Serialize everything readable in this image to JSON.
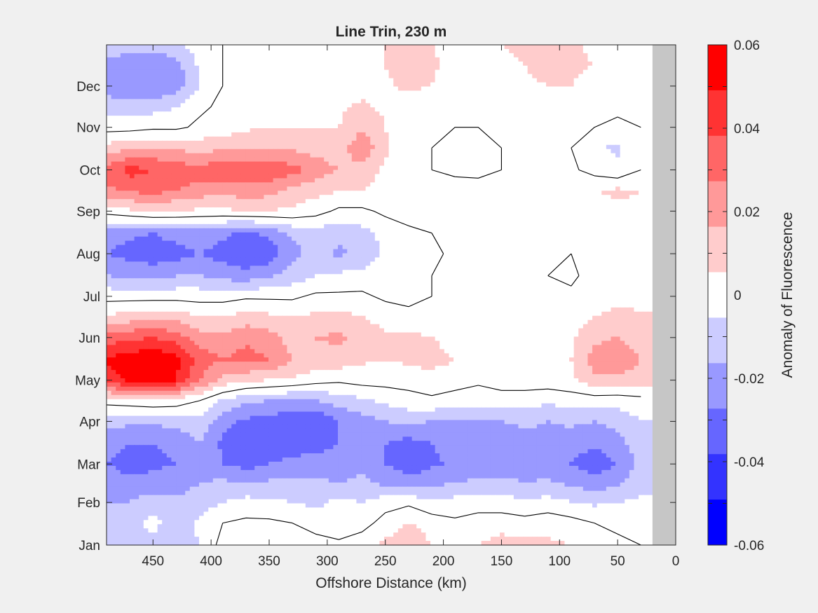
{
  "chart_data": {
    "type": "heatmap",
    "title": "Line Trin, 230 m",
    "xlabel": "Offshore Distance (km)",
    "ylabel": "",
    "colorbar_label": "Anomaly of Fluorescence",
    "xlim": [
      490,
      0
    ],
    "x_ticks": [
      450,
      400,
      350,
      300,
      250,
      200,
      150,
      100,
      50,
      0
    ],
    "y_ticks": [
      "Jan",
      "Feb",
      "Mar",
      "Apr",
      "May",
      "Jun",
      "Jul",
      "Aug",
      "Sep",
      "Oct",
      "Nov",
      "Dec"
    ],
    "y_tick_days": [
      1,
      32,
      60,
      91,
      121,
      152,
      182,
      213,
      244,
      274,
      305,
      335
    ],
    "ylim_days": [
      1,
      365
    ],
    "clim": [
      -0.06,
      0.06
    ],
    "colorbar_ticks": [
      "0.06",
      "0.04",
      "0.02",
      "0",
      "-0.02",
      "-0.04",
      "-0.06"
    ],
    "colorbar_tick_values": [
      0.06,
      0.04,
      0.02,
      0,
      -0.02,
      -0.04,
      -0.06
    ],
    "contour_levels": [
      -0.06,
      -0.05,
      -0.04,
      -0.03,
      -0.02,
      -0.01,
      0.01,
      0.02,
      0.03,
      0.04,
      0.05,
      0.06
    ],
    "level_colors": [
      "#0000ff",
      "#3333ff",
      "#6666ff",
      "#9999ff",
      "#ccccff",
      "#ffffff",
      "#ffcccc",
      "#ff9999",
      "#ff6666",
      "#ff3333",
      "#ff0000"
    ],
    "masked_region_color": "#c6c6c6",
    "masked_region_x": [
      20,
      0
    ],
    "zero_contour_color": "#000000",
    "grid": false,
    "legend": "colorbar-right",
    "x": [
      490,
      470,
      450,
      430,
      410,
      390,
      370,
      350,
      330,
      310,
      290,
      270,
      250,
      230,
      210,
      190,
      170,
      150,
      130,
      110,
      90,
      70,
      50,
      30
    ],
    "y_days": [
      1,
      17,
      32,
      46,
      60,
      75,
      91,
      106,
      121,
      136,
      152,
      167,
      182,
      197,
      213,
      228,
      244,
      259,
      274,
      290,
      305,
      320,
      335,
      350,
      365
    ],
    "z": [
      [
        -0.012,
        -0.014,
        -0.012,
        -0.016,
        -0.01,
        0.004,
        0.006,
        0.008,
        0.006,
        0.004,
        0.002,
        0.006,
        0.012,
        0.018,
        0.01,
        0.004,
        0.01,
        0.014,
        0.014,
        0.012,
        0.01,
        0.006,
        0.002,
        0.0
      ],
      [
        -0.012,
        -0.012,
        -0.008,
        -0.014,
        -0.008,
        0.0,
        0.002,
        0.002,
        0.0,
        -0.004,
        -0.006,
        -0.004,
        0.004,
        0.01,
        0.006,
        0.002,
        0.004,
        0.006,
        0.004,
        0.006,
        0.004,
        0.0,
        -0.002,
        -0.002
      ],
      [
        -0.02,
        -0.02,
        -0.014,
        -0.018,
        -0.016,
        -0.01,
        -0.006,
        -0.008,
        -0.01,
        -0.012,
        -0.008,
        -0.01,
        -0.004,
        -0.002,
        -0.008,
        -0.006,
        -0.004,
        -0.006,
        -0.008,
        -0.006,
        -0.01,
        -0.012,
        -0.01,
        -0.008
      ],
      [
        -0.024,
        -0.028,
        -0.026,
        -0.024,
        -0.02,
        -0.018,
        -0.02,
        -0.018,
        -0.016,
        -0.018,
        -0.02,
        -0.018,
        -0.022,
        -0.026,
        -0.022,
        -0.02,
        -0.018,
        -0.016,
        -0.02,
        -0.018,
        -0.022,
        -0.026,
        -0.022,
        -0.014
      ],
      [
        -0.03,
        -0.034,
        -0.032,
        -0.03,
        -0.022,
        -0.03,
        -0.034,
        -0.03,
        -0.028,
        -0.026,
        -0.024,
        -0.022,
        -0.03,
        -0.036,
        -0.032,
        -0.028,
        -0.026,
        -0.03,
        -0.028,
        -0.026,
        -0.03,
        -0.036,
        -0.03,
        -0.016
      ],
      [
        -0.026,
        -0.03,
        -0.03,
        -0.028,
        -0.02,
        -0.032,
        -0.04,
        -0.036,
        -0.034,
        -0.034,
        -0.03,
        -0.028,
        -0.03,
        -0.034,
        -0.03,
        -0.026,
        -0.026,
        -0.026,
        -0.024,
        -0.024,
        -0.026,
        -0.028,
        -0.024,
        -0.014
      ],
      [
        -0.016,
        -0.018,
        -0.018,
        -0.016,
        -0.012,
        -0.026,
        -0.032,
        -0.034,
        -0.038,
        -0.04,
        -0.03,
        -0.024,
        -0.02,
        -0.018,
        -0.02,
        -0.022,
        -0.02,
        -0.02,
        -0.018,
        -0.02,
        -0.018,
        -0.02,
        -0.016,
        -0.01
      ],
      [
        0.004,
        0.006,
        0.008,
        0.006,
        0.0,
        -0.012,
        -0.018,
        -0.02,
        -0.022,
        -0.02,
        -0.016,
        -0.012,
        -0.008,
        -0.004,
        -0.002,
        -0.004,
        -0.006,
        -0.004,
        -0.006,
        -0.008,
        -0.006,
        -0.006,
        -0.006,
        -0.004
      ],
      [
        0.044,
        0.052,
        0.056,
        0.05,
        0.03,
        0.018,
        0.012,
        0.01,
        0.008,
        0.004,
        0.002,
        0.004,
        0.004,
        0.004,
        0.006,
        0.004,
        0.002,
        0.004,
        0.006,
        0.006,
        0.008,
        0.018,
        0.016,
        0.016
      ],
      [
        0.052,
        0.056,
        0.058,
        0.054,
        0.036,
        0.03,
        0.034,
        0.03,
        0.02,
        0.018,
        0.016,
        0.012,
        0.01,
        0.012,
        0.014,
        0.01,
        0.006,
        0.006,
        0.008,
        0.006,
        0.01,
        0.024,
        0.028,
        0.02
      ],
      [
        0.034,
        0.038,
        0.04,
        0.036,
        0.024,
        0.022,
        0.028,
        0.024,
        0.016,
        0.02,
        0.022,
        0.016,
        0.012,
        0.012,
        0.01,
        0.006,
        0.004,
        0.004,
        0.006,
        0.004,
        0.008,
        0.018,
        0.02,
        0.016
      ],
      [
        0.012,
        0.014,
        0.016,
        0.016,
        0.01,
        0.01,
        0.014,
        0.012,
        0.01,
        0.012,
        0.014,
        0.01,
        0.006,
        0.004,
        0.004,
        0.002,
        0.002,
        0.002,
        0.002,
        0.002,
        0.004,
        0.01,
        0.012,
        0.012
      ],
      [
        -0.004,
        -0.004,
        -0.004,
        -0.004,
        -0.004,
        -0.004,
        -0.002,
        -0.002,
        -0.002,
        0.002,
        0.002,
        0.002,
        -0.002,
        -0.004,
        0.0,
        0.0,
        0.002,
        0.002,
        0.002,
        0.002,
        0.002,
        0.006,
        0.008,
        0.006
      ],
      [
        -0.02,
        -0.022,
        -0.024,
        -0.02,
        -0.02,
        -0.024,
        -0.026,
        -0.022,
        -0.016,
        -0.01,
        -0.008,
        -0.006,
        -0.004,
        -0.002,
        0.0,
        0.0,
        0.002,
        0.002,
        0.002,
        0.0,
        -0.002,
        0.004,
        0.006,
        0.004
      ],
      [
        -0.03,
        -0.034,
        -0.036,
        -0.034,
        -0.03,
        -0.034,
        -0.04,
        -0.036,
        -0.024,
        -0.016,
        -0.022,
        -0.018,
        -0.008,
        -0.004,
        -0.002,
        0.002,
        0.004,
        0.004,
        0.002,
        0.0,
        0.0,
        0.004,
        0.006,
        0.004
      ],
      [
        -0.024,
        -0.028,
        -0.03,
        -0.026,
        -0.024,
        -0.028,
        -0.032,
        -0.028,
        -0.018,
        -0.014,
        -0.018,
        -0.014,
        -0.006,
        -0.002,
        0.0,
        0.002,
        0.006,
        0.008,
        0.006,
        0.002,
        0.002,
        0.004,
        0.006,
        0.006
      ],
      [
        0.004,
        0.008,
        0.012,
        0.01,
        0.008,
        0.008,
        0.01,
        0.01,
        0.008,
        0.004,
        -0.002,
        -0.002,
        0.002,
        0.004,
        0.004,
        0.002,
        0.006,
        0.008,
        0.006,
        0.004,
        0.004,
        0.006,
        0.008,
        0.008
      ],
      [
        0.028,
        0.032,
        0.034,
        0.03,
        0.026,
        0.024,
        0.026,
        0.024,
        0.016,
        0.014,
        0.01,
        0.01,
        0.006,
        0.004,
        0.002,
        0.004,
        0.006,
        0.006,
        0.004,
        0.004,
        0.006,
        0.01,
        0.012,
        0.01
      ],
      [
        0.034,
        0.044,
        0.04,
        0.036,
        0.034,
        0.038,
        0.036,
        0.038,
        0.034,
        0.026,
        0.02,
        0.016,
        0.008,
        0.004,
        0.0,
        -0.002,
        -0.004,
        0.0,
        0.0,
        0.002,
        0.002,
        -0.004,
        -0.008,
        0.0
      ],
      [
        0.014,
        0.018,
        0.02,
        0.018,
        0.016,
        0.018,
        0.018,
        0.02,
        0.018,
        0.016,
        0.014,
        0.028,
        0.012,
        0.004,
        0.0,
        -0.002,
        -0.004,
        0.0,
        0.0,
        0.002,
        0.0,
        -0.008,
        -0.012,
        -0.004
      ],
      [
        -0.004,
        -0.004,
        -0.002,
        -0.002,
        0.002,
        0.004,
        0.008,
        0.01,
        0.01,
        0.01,
        0.01,
        0.018,
        0.01,
        0.004,
        0.002,
        0.0,
        0.0,
        0.002,
        0.002,
        0.004,
        0.004,
        0.0,
        -0.002,
        0.0
      ],
      [
        -0.014,
        -0.016,
        -0.014,
        -0.01,
        -0.002,
        0.002,
        0.004,
        0.006,
        0.006,
        0.008,
        0.008,
        0.012,
        0.008,
        0.006,
        0.004,
        0.002,
        0.002,
        0.004,
        0.004,
        0.006,
        0.008,
        0.004,
        0.002,
        0.002
      ],
      [
        -0.026,
        -0.03,
        -0.03,
        -0.026,
        -0.01,
        0.0,
        0.002,
        0.004,
        0.004,
        0.006,
        0.006,
        0.006,
        0.008,
        0.012,
        0.01,
        0.004,
        0.004,
        0.006,
        0.008,
        0.01,
        0.01,
        0.006,
        0.006,
        0.004
      ],
      [
        -0.022,
        -0.026,
        -0.028,
        -0.024,
        -0.008,
        0.0,
        0.004,
        0.006,
        0.004,
        0.004,
        0.0,
        0.004,
        0.01,
        0.016,
        0.012,
        0.006,
        0.006,
        0.008,
        0.01,
        0.014,
        0.012,
        0.01,
        0.008,
        0.004
      ],
      [
        -0.014,
        -0.016,
        -0.016,
        -0.014,
        -0.004,
        0.0,
        0.004,
        0.004,
        0.002,
        0.002,
        0.0,
        0.004,
        0.01,
        0.014,
        0.01,
        0.006,
        0.008,
        0.01,
        0.012,
        0.014,
        0.012,
        0.008,
        0.006,
        0.004
      ]
    ]
  }
}
